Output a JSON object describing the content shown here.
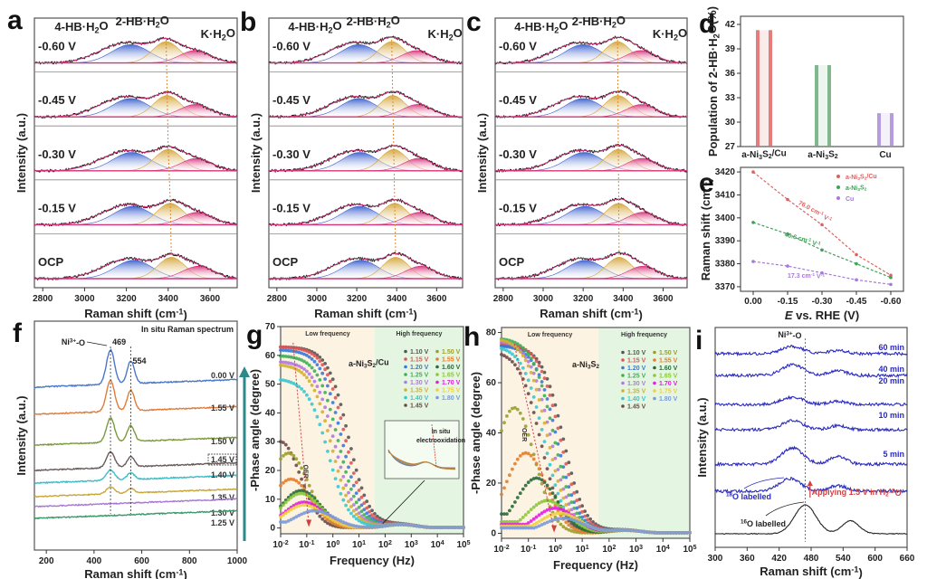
{
  "chart_data": [
    {
      "panel": "a",
      "type": "line",
      "xlabel": "Raman shift (cm-1)",
      "ylabel": "Intensity (a.u.)",
      "xlim": [
        2760,
        3730
      ],
      "xticks": [
        2800,
        3000,
        3200,
        3400,
        3600
      ],
      "peak_labels": [
        "4-HB·H2O",
        "2-HB·H2O",
        "K·H2O"
      ],
      "traces": [
        {
          "label": "-0.60 V",
          "peaks": [
            3220,
            3390,
            3530
          ]
        },
        {
          "label": "-0.45 V",
          "peaks": [
            3220,
            3395,
            3530
          ]
        },
        {
          "label": "-0.30 V",
          "peaks": [
            3225,
            3400,
            3535
          ]
        },
        {
          "label": "-0.15 V",
          "peaks": [
            3230,
            3410,
            3540
          ]
        },
        {
          "label": "OCP",
          "peaks": [
            3235,
            3415,
            3545
          ]
        }
      ],
      "component_colors": [
        "#3a5fcd",
        "#d4a437",
        "#d6337a"
      ]
    },
    {
      "panel": "b",
      "type": "line",
      "xlabel": "Raman shift (cm-1)",
      "ylabel": "Intensity (a.u.)",
      "xlim": [
        2760,
        3730
      ],
      "xticks": [
        2800,
        3000,
        3200,
        3400,
        3600
      ],
      "peak_labels": [
        "4-HB·H2O",
        "2-HB·H2O",
        "K·H2O"
      ],
      "traces": [
        {
          "label": "-0.60 V",
          "peaks": [
            3210,
            3375,
            3500
          ]
        },
        {
          "label": "-0.45 V",
          "peaks": [
            3210,
            3380,
            3505
          ]
        },
        {
          "label": "-0.30 V",
          "peaks": [
            3215,
            3385,
            3510
          ]
        },
        {
          "label": "-0.15 V",
          "peaks": [
            3215,
            3390,
            3515
          ]
        },
        {
          "label": "OCP",
          "peaks": [
            3220,
            3395,
            3520
          ]
        }
      ],
      "component_colors": [
        "#3a5fcd",
        "#d4a437",
        "#d6337a"
      ]
    },
    {
      "panel": "c",
      "type": "line",
      "xlabel": "Raman shift (cm-1)",
      "ylabel": "Intensity (a.u.)",
      "xlim": [
        2760,
        3720
      ],
      "xticks": [
        2800,
        3000,
        3200,
        3400,
        3600
      ],
      "peak_labels": [
        "4-HB·H2O",
        "2-HB·H2O",
        "K·H2O"
      ],
      "traces": [
        {
          "label": "-0.60 V",
          "peaks": [
            3200,
            3372,
            3490
          ]
        },
        {
          "label": "-0.45 V",
          "peaks": [
            3200,
            3374,
            3492
          ]
        },
        {
          "label": "-0.30 V",
          "peaks": [
            3205,
            3376,
            3495
          ]
        },
        {
          "label": "-0.15 V",
          "peaks": [
            3210,
            3378,
            3498
          ]
        },
        {
          "label": "OCP",
          "peaks": [
            3210,
            3380,
            3500
          ]
        }
      ],
      "component_colors": [
        "#3a5fcd",
        "#d4a437",
        "#d6337a"
      ]
    },
    {
      "panel": "d",
      "type": "bar",
      "ylabel": "Population of 2-HB·H2O(%)",
      "categories": [
        "a-Ni3S2/Cu",
        "a-Ni3S2",
        "Cu"
      ],
      "values": [
        41.3,
        37.0,
        31.1
      ],
      "ylim": [
        27,
        43
      ],
      "yticks": [
        27,
        30,
        33,
        36,
        39,
        42
      ],
      "colors": [
        "#e06666",
        "#6aaa78",
        "#a98ad8"
      ]
    },
    {
      "panel": "e",
      "type": "scatter",
      "xlabel": "E vs. RHE (V)",
      "ylabel": "Raman shift (cm-1)",
      "x": [
        0.0,
        -0.15,
        -0.3,
        -0.45,
        -0.6
      ],
      "xticks": [
        "0.00",
        "-0.15",
        "-0.30",
        "-0.45",
        "-0.60"
      ],
      "ylim": [
        3368,
        3422
      ],
      "yticks": [
        3370,
        3380,
        3390,
        3400,
        3410,
        3420
      ],
      "series": [
        {
          "name": "a-Ni3S2/Cu",
          "values": [
            3420,
            3408,
            3397,
            3384,
            3375
          ],
          "slope_label": "76.0 cm-1 V-1",
          "color": "#e06060"
        },
        {
          "name": "a-Ni3S2",
          "values": [
            3398,
            3393,
            3386,
            3380,
            3374
          ],
          "slope_label": "40.6 cm-1 V-1",
          "color": "#3fa05a"
        },
        {
          "name": "Cu",
          "values": [
            3381,
            3379,
            3376,
            3373,
            3371
          ],
          "slope_label": "17.3 cm-1 V-1",
          "color": "#a57ad8"
        }
      ],
      "legend": "top-right"
    },
    {
      "panel": "f",
      "type": "line",
      "title": "In situ Raman spectrum",
      "xlabel": "Raman shift (cm-1)",
      "ylabel": "Intensity (a.u.)",
      "xlim": [
        150,
        1000
      ],
      "xticks": [
        200,
        400,
        600,
        800,
        1000
      ],
      "annotations": [
        "Ni3+-O",
        "469",
        "554"
      ],
      "peaks": [
        469,
        554
      ],
      "series": [
        {
          "name": "0.00 V",
          "color": "#4a78c8",
          "peak_height": 1.0
        },
        {
          "name": "1.55 V",
          "color": "#e07b3a",
          "peak_height": 0.9
        },
        {
          "name": "1.50 V",
          "color": "#7a9a3a",
          "peak_height": 0.7
        },
        {
          "name": "1.45 V",
          "color": "#6b5a5a",
          "peak_height": 0.45
        },
        {
          "name": "1.40 V",
          "color": "#3bbcc8",
          "peak_height": 0.3
        },
        {
          "name": "1.35 V",
          "color": "#c8a83a",
          "peak_height": 0.2
        },
        {
          "name": "1.30 V",
          "color": "#a878d8",
          "peak_height": 0.0
        },
        {
          "name": "1.25 V",
          "color": "#3a9a6a",
          "peak_height": 0.0
        }
      ]
    },
    {
      "panel": "g",
      "type": "scatter",
      "sample": "a-Ni3S2/Cu",
      "xlabel": "Frequency (Hz)",
      "ylabel": "-Phase angle (degree)",
      "xscale": "log",
      "xlim": [
        0.01,
        100000
      ],
      "xticks": [
        "10-2",
        "10-1",
        "100",
        "101",
        "102",
        "103",
        "104",
        "105"
      ],
      "ylim": [
        -2,
        70
      ],
      "yticks": [
        0,
        10,
        20,
        30,
        40,
        50,
        60,
        70
      ],
      "regions": [
        "Low frequency",
        "High frequency"
      ],
      "annotations": [
        "OER",
        "In situ electrooxidation"
      ],
      "series": [
        {
          "name": "1.10 V",
          "peak": 63,
          "fpk": 0.01,
          "color": "#555555"
        },
        {
          "name": "1.15 V",
          "peak": 63,
          "fpk": 0.01,
          "color": "#e05555"
        },
        {
          "name": "1.20 V",
          "peak": 62,
          "fpk": 0.01,
          "color": "#3a7ad8"
        },
        {
          "name": "1.25 V",
          "peak": 60,
          "fpk": 0.01,
          "color": "#3fae5a"
        },
        {
          "name": "1.30 V",
          "peak": 58,
          "fpk": 0.01,
          "color": "#b07ae0"
        },
        {
          "name": "1.35 V",
          "peak": 57,
          "fpk": 0.01,
          "color": "#d4b030"
        },
        {
          "name": "1.40 V",
          "peak": 52,
          "fpk": 0.01,
          "color": "#3ac8d0"
        },
        {
          "name": "1.45 V",
          "peak": 30,
          "fpk": 0.01,
          "color": "#6b4a4a"
        },
        {
          "name": "1.50 V",
          "peak": 26,
          "fpk": 0.02,
          "color": "#9aa030"
        },
        {
          "name": "1.55 V",
          "peak": 17,
          "fpk": 0.025,
          "color": "#e08030"
        },
        {
          "name": "1.60 V",
          "peak": 13,
          "fpk": 0.06,
          "color": "#2a6a3a"
        },
        {
          "name": "1.65 V",
          "peak": 12,
          "fpk": 0.06,
          "color": "#8ac83a"
        },
        {
          "name": "1.70 V",
          "peak": 9,
          "fpk": 0.08,
          "color": "#e020e0"
        },
        {
          "name": "1.75 V",
          "peak": 8,
          "fpk": 0.08,
          "color": "#f0d040"
        },
        {
          "name": "1.80 V",
          "peak": 6,
          "fpk": 0.2,
          "color": "#7a9ad8"
        }
      ]
    },
    {
      "panel": "h",
      "type": "scatter",
      "sample": "a-Ni3S2",
      "xlabel": "Frequency (Hz)",
      "ylabel": "-Phase angle (degree)",
      "xscale": "log",
      "xlim": [
        0.01,
        100000
      ],
      "xticks": [
        "10-2",
        "10-1",
        "100",
        "101",
        "102",
        "103",
        "104",
        "105"
      ],
      "ylim": [
        -2,
        82
      ],
      "yticks": [
        0,
        20,
        40,
        60,
        80
      ],
      "regions": [
        "Low frequency",
        "High frequency"
      ],
      "annotations": [
        "OER"
      ],
      "series": [
        {
          "name": "1.10 V",
          "peak": 75,
          "fpk": 0.01,
          "color": "#555555"
        },
        {
          "name": "1.15 V",
          "peak": 76,
          "fpk": 0.01,
          "color": "#e05555"
        },
        {
          "name": "1.20 V",
          "peak": 75,
          "fpk": 0.01,
          "color": "#3a7ad8"
        },
        {
          "name": "1.25 V",
          "peak": 78,
          "fpk": 0.01,
          "color": "#3fae5a"
        },
        {
          "name": "1.30 V",
          "peak": 77,
          "fpk": 0.01,
          "color": "#b07ae0"
        },
        {
          "name": "1.35 V",
          "peak": 78,
          "fpk": 0.01,
          "color": "#d4b030"
        },
        {
          "name": "1.40 V",
          "peak": 75,
          "fpk": 0.01,
          "color": "#3ac8d0"
        },
        {
          "name": "1.45 V",
          "peak": 73,
          "fpk": 0.01,
          "color": "#6b4a4a"
        },
        {
          "name": "1.50 V",
          "peak": 50,
          "fpk": 0.03,
          "color": "#9aa030"
        },
        {
          "name": "1.55 V",
          "peak": 32,
          "fpk": 0.08,
          "color": "#e08030"
        },
        {
          "name": "1.60 V",
          "peak": 22,
          "fpk": 0.2,
          "color": "#2a6a3a"
        },
        {
          "name": "1.65 V",
          "peak": 13,
          "fpk": 0.5,
          "color": "#8ac83a"
        },
        {
          "name": "1.70 V",
          "peak": 10,
          "fpk": 1.0,
          "color": "#e020e0"
        },
        {
          "name": "1.75 V",
          "peak": 8,
          "fpk": 1.5,
          "color": "#f0d040"
        },
        {
          "name": "1.80 V",
          "peak": 6,
          "fpk": 2.0,
          "color": "#7a9ad8"
        }
      ]
    },
    {
      "panel": "i",
      "type": "line",
      "xlabel": "Raman shift (cm-1)",
      "ylabel": "Intensity (a.u.)",
      "xlim": [
        300,
        660
      ],
      "xticks": [
        300,
        360,
        420,
        480,
        540,
        600,
        660
      ],
      "annotations": [
        "Ni3+-O",
        "Applying 1.5 V in H2 18O",
        "18O labelled",
        "16O labelled"
      ],
      "series": [
        {
          "name": "60 min",
          "color": "#2a2ac0",
          "peaks": [
            445,
            530
          ]
        },
        {
          "name": "40 min",
          "color": "#2a2ac0",
          "peaks": [
            445,
            530
          ]
        },
        {
          "name": "20 min",
          "color": "#2a2ac0",
          "peaks": [
            445,
            530
          ]
        },
        {
          "name": "10 min",
          "color": "#2a2ac0",
          "peaks": [
            445,
            530
          ]
        },
        {
          "name": "5 min",
          "color": "#2a2ac0",
          "peaks": [
            445,
            530
          ]
        },
        {
          "name": "18O labelled",
          "color": "#2a2ac0",
          "peaks": [
            440,
            530
          ]
        },
        {
          "name": "16O labelled",
          "color": "#222222",
          "peaks": [
            469,
            554
          ]
        }
      ]
    }
  ],
  "panel_letters": [
    "a",
    "b",
    "c",
    "d",
    "e",
    "f",
    "g",
    "h",
    "i"
  ]
}
